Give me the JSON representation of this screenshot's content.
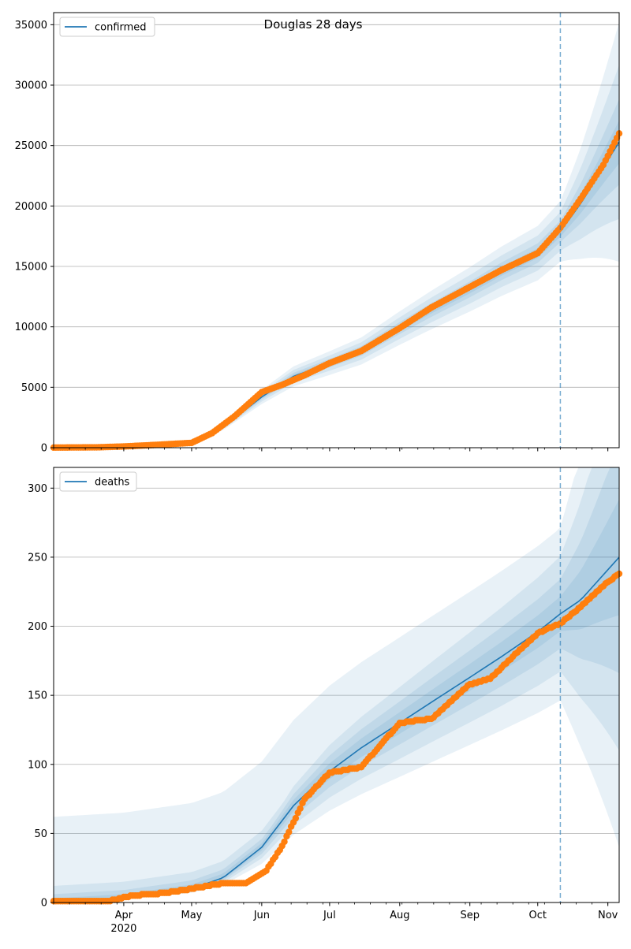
{
  "chart_data": [
    {
      "type": "line",
      "title": "Douglas 28 days",
      "xlabel": "",
      "ylabel": "",
      "ylim": [
        0,
        36000
      ],
      "yticks": [
        0,
        5000,
        10000,
        15000,
        20000,
        25000,
        30000,
        35000
      ],
      "x_range": [
        "2020-03-01",
        "2020-11-06"
      ],
      "grid": "horizontal",
      "legend": "top-left",
      "forecast_start": "2020-10-11",
      "series": [
        {
          "name": "confirmed",
          "kind": "model-median-line",
          "color": "#1f77b4",
          "x": [
            "2020-03-01",
            "2020-04-01",
            "2020-05-01",
            "2020-05-15",
            "2020-06-01",
            "2020-06-15",
            "2020-07-01",
            "2020-07-15",
            "2020-08-01",
            "2020-08-15",
            "2020-09-01",
            "2020-09-15",
            "2020-10-01",
            "2020-10-11",
            "2020-10-20",
            "2020-11-06"
          ],
          "values": [
            0,
            80,
            300,
            1700,
            4200,
            5900,
            7000,
            8000,
            9900,
            11400,
            13100,
            14600,
            16100,
            17900,
            20200,
            25300
          ]
        },
        {
          "name": "",
          "kind": "observed-points",
          "color": "#ff7f0e",
          "x": [
            "2020-03-01",
            "2020-03-20",
            "2020-04-01",
            "2020-04-15",
            "2020-05-01",
            "2020-05-10",
            "2020-05-20",
            "2020-06-01",
            "2020-06-10",
            "2020-06-20",
            "2020-07-01",
            "2020-07-15",
            "2020-08-01",
            "2020-08-15",
            "2020-09-01",
            "2020-09-15",
            "2020-10-01",
            "2020-10-11",
            "2020-10-20",
            "2020-10-30",
            "2020-11-06"
          ],
          "values": [
            10,
            30,
            100,
            230,
            400,
            1200,
            2600,
            4600,
            5200,
            6000,
            7000,
            8000,
            9900,
            11600,
            13300,
            14700,
            16100,
            18200,
            20600,
            23400,
            26000
          ]
        }
      ]
    },
    {
      "type": "line",
      "title": "",
      "xlabel": "",
      "ylabel": "",
      "ylim": [
        0,
        315
      ],
      "yticks": [
        0,
        50,
        100,
        150,
        200,
        250,
        300
      ],
      "x_range": [
        "2020-03-01",
        "2020-11-06"
      ],
      "xticks": [
        {
          "date": "2020-04-01",
          "label": "Apr",
          "sub": "2020"
        },
        {
          "date": "2020-05-01",
          "label": "May",
          "sub": ""
        },
        {
          "date": "2020-06-01",
          "label": "Jun",
          "sub": ""
        },
        {
          "date": "2020-07-01",
          "label": "Jul",
          "sub": ""
        },
        {
          "date": "2020-08-01",
          "label": "Aug",
          "sub": ""
        },
        {
          "date": "2020-09-01",
          "label": "Sep",
          "sub": ""
        },
        {
          "date": "2020-10-01",
          "label": "Oct",
          "sub": ""
        },
        {
          "date": "2020-11-01",
          "label": "Nov",
          "sub": ""
        }
      ],
      "grid": "horizontal",
      "legend": "top-left",
      "forecast_start": "2020-10-11",
      "series": [
        {
          "name": "deaths",
          "kind": "model-median-line",
          "color": "#1f77b4",
          "x": [
            "2020-03-01",
            "2020-04-01",
            "2020-05-01",
            "2020-05-15",
            "2020-06-01",
            "2020-06-15",
            "2020-07-01",
            "2020-07-15",
            "2020-08-01",
            "2020-08-15",
            "2020-09-01",
            "2020-09-15",
            "2020-10-01",
            "2020-10-11",
            "2020-10-20",
            "2020-11-06"
          ],
          "values": [
            0,
            3,
            10,
            18,
            40,
            70,
            95,
            112,
            130,
            145,
            163,
            178,
            196,
            209,
            219,
            250
          ]
        },
        {
          "name": "",
          "kind": "observed-points",
          "color": "#ff7f0e",
          "x": [
            "2020-03-01",
            "2020-03-25",
            "2020-04-05",
            "2020-04-20",
            "2020-05-01",
            "2020-05-15",
            "2020-05-25",
            "2020-06-03",
            "2020-06-10",
            "2020-06-20",
            "2020-07-01",
            "2020-07-15",
            "2020-08-01",
            "2020-08-15",
            "2020-09-01",
            "2020-09-10",
            "2020-09-20",
            "2020-10-01",
            "2020-10-11",
            "2020-10-20",
            "2020-11-01",
            "2020-11-06"
          ],
          "values": [
            1,
            1,
            5,
            7,
            10,
            14,
            14,
            23,
            41,
            75,
            94,
            98,
            130,
            133,
            158,
            162,
            178,
            195,
            202,
            214,
            232,
            238
          ]
        }
      ]
    }
  ]
}
